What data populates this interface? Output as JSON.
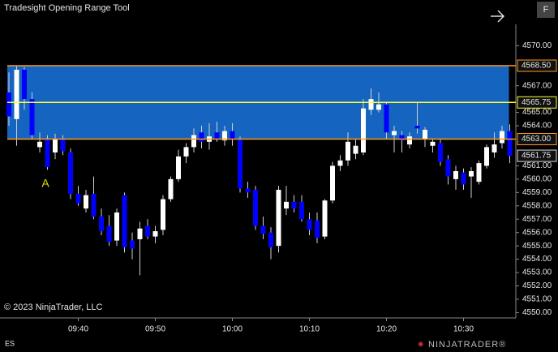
{
  "chart_data": {
    "type": "candlestick",
    "title": "Tradesight Opening Range Tool",
    "copyright": "© 2023 NinjaTrader, LLC",
    "instrument": "ES",
    "button": "F",
    "brand": "NINJATRADER®",
    "marker": "A",
    "categories": [
      null,
      null,
      null,
      null,
      null,
      null,
      null,
      null,
      null,
      "09:40",
      null,
      null,
      null,
      null,
      null,
      null,
      null,
      null,
      null,
      "09:50",
      null,
      null,
      null,
      null,
      null,
      null,
      null,
      null,
      null,
      "10:00",
      null,
      null,
      null,
      null,
      null,
      null,
      null,
      null,
      null,
      "10:10",
      null,
      null,
      null,
      null,
      null,
      null,
      null,
      null,
      null,
      "10:20",
      null,
      null,
      null,
      null,
      null,
      null,
      null,
      null,
      null,
      "10:30",
      null,
      null,
      null,
      null,
      null,
      null
    ],
    "series": [
      {
        "up_color": "#ffffff",
        "down_color": "#0000ff",
        "open": [
          4566.5,
          4564.5,
          4568.2,
          4566.0,
          4562.4,
          4563.0,
          4562.0,
          4563.0,
          4562.0,
          4558.9,
          4557.8,
          4558.9,
          4557.2,
          4556.5,
          4555.4,
          4558.8,
          4555.4,
          4555.5,
          4556.5,
          4555.7,
          4556.2,
          4558.5,
          4560.0,
          4561.7,
          4562.4,
          4563.5,
          4562.8,
          4563.5,
          4562.9,
          4563.6,
          4563.0,
          4559.3,
          4559.2,
          4556.5,
          4556.0,
          4555.0,
          4557.8,
          4558.3,
          4558.3,
          4557.0,
          4556.9,
          4555.7,
          4558.4,
          4561.0,
          4561.4,
          4561.9,
          4562.0,
          4565.2,
          4565.2,
          4565.6,
          4563.3,
          4563.3,
          4562.6,
          4564.0,
          4563.0,
          4562.5,
          4562.7,
          4561.5,
          4560.0,
          4560.5,
          4560.2,
          4559.8,
          4561.0,
          4562.0,
          4562.7,
          4563.6
        ],
        "high": [
          4568.0,
          4568.5,
          4568.4,
          4566.5,
          4563.5,
          4563.3,
          4563.4,
          4563.3,
          4562.3,
          4559.5,
          4559.2,
          4560.2,
          4557.8,
          4557.3,
          4557.8,
          4559.0,
          4556.0,
          4556.8,
          4557.0,
          4556.5,
          4558.8,
          4560.2,
          4562.2,
          4562.7,
          4563.8,
          4564.0,
          4564.2,
          4564.3,
          4564.0,
          4564.2,
          4563.2,
          4559.8,
          4559.5,
          4557.2,
          4556.4,
          4559.5,
          4559.5,
          4558.8,
          4558.8,
          4557.5,
          4557.5,
          4558.5,
          4561.3,
          4561.8,
          4563.5,
          4563.0,
          4566.0,
          4566.8,
          4566.5,
          4565.8,
          4564.0,
          4563.6,
          4563.5,
          4565.8,
          4563.9,
          4563.0,
          4563.0,
          4561.8,
          4561.0,
          4560.8,
          4560.9,
          4561.4,
          4562.6,
          4563.5,
          4564.0,
          4564.1
        ],
        "low": [
          4564.0,
          4562.5,
          4565.2,
          4563.0,
          4562.0,
          4560.7,
          4561.5,
          4561.8,
          4558.5,
          4558.0,
          4557.5,
          4557.0,
          4555.8,
          4555.0,
          4555.0,
          4554.5,
          4554.0,
          4552.8,
          4555.5,
          4555.2,
          4555.8,
          4558.3,
          4559.8,
          4561.2,
          4562.0,
          4562.3,
          4562.2,
          4562.8,
          4562.5,
          4562.5,
          4559.0,
          4558.6,
          4556.2,
          4555.5,
          4554.0,
          4554.5,
          4557.3,
          4557.5,
          4556.8,
          4555.8,
          4555.2,
          4555.5,
          4558.2,
          4560.6,
          4561.0,
          4561.5,
          4561.8,
          4564.8,
          4565.0,
          4563.0,
          4562.0,
          4562.0,
          4562.3,
          4563.4,
          4562.4,
          4562.0,
          4561.0,
          4559.6,
          4559.2,
          4559.2,
          4558.6,
          4559.6,
          4560.8,
          4561.6,
          4562.3,
          4561.2
        ],
        "close": [
          4564.7,
          4568.2,
          4566.0,
          4563.3,
          4562.8,
          4560.9,
          4563.0,
          4562.1,
          4558.9,
          4558.2,
          4558.8,
          4557.2,
          4556.1,
          4555.3,
          4557.5,
          4554.9,
          4554.8,
          4556.3,
          4555.7,
          4556.1,
          4558.5,
          4560.0,
          4561.7,
          4562.4,
          4563.3,
          4562.8,
          4563.2,
          4563.0,
          4563.6,
          4563.0,
          4559.3,
          4559.0,
          4556.5,
          4555.9,
          4554.9,
          4559.2,
          4558.3,
          4557.8,
          4557.0,
          4556.2,
          4555.6,
          4558.4,
          4561.0,
          4561.4,
          4562.8,
          4562.5,
          4565.3,
          4566.0,
          4565.6,
          4563.5,
          4563.6,
          4562.9,
          4563.2,
          4563.8,
          4563.7,
          4562.8,
          4561.3,
          4560.2,
          4560.6,
          4559.6,
          4560.6,
          4561.2,
          4562.4,
          4562.6,
          4563.6,
          4561.75
        ]
      }
    ],
    "opening_range": {
      "color": "#1565c0",
      "high": {
        "value": 4568.5,
        "label": "4568.50",
        "color": "#ff9a1f"
      },
      "mid": {
        "value": 4565.75,
        "label": "4565.75",
        "color": "#ffff33"
      },
      "low": {
        "value": 4563.0,
        "label": "4563.00",
        "color": "#ff9a1f"
      }
    },
    "last_price": {
      "value": 4561.75,
      "label": "4561.75"
    },
    "ylim": [
      4549.6,
      4571.6
    ],
    "yticks": [
      {
        "value": 4570,
        "label": "4570.00"
      },
      {
        "value": 4567,
        "label": "4567.00"
      },
      {
        "value": 4565,
        "label": "4565.00"
      },
      {
        "value": 4564,
        "label": "4564.00"
      },
      {
        "value": 4561,
        "label": "4561.00"
      },
      {
        "value": 4560,
        "label": "4560.00"
      },
      {
        "value": 4559,
        "label": "4559.00"
      },
      {
        "value": 4558,
        "label": "4558.00"
      },
      {
        "value": 4557,
        "label": "4557.00"
      },
      {
        "value": 4556,
        "label": "4556.00"
      },
      {
        "value": 4555,
        "label": "4555.00"
      },
      {
        "value": 4554,
        "label": "4554.00"
      },
      {
        "value": 4553,
        "label": "4553.00"
      },
      {
        "value": 4552,
        "label": "4552.00"
      },
      {
        "value": 4551,
        "label": "4551.00"
      },
      {
        "value": 4550,
        "label": "4550.00"
      }
    ]
  }
}
